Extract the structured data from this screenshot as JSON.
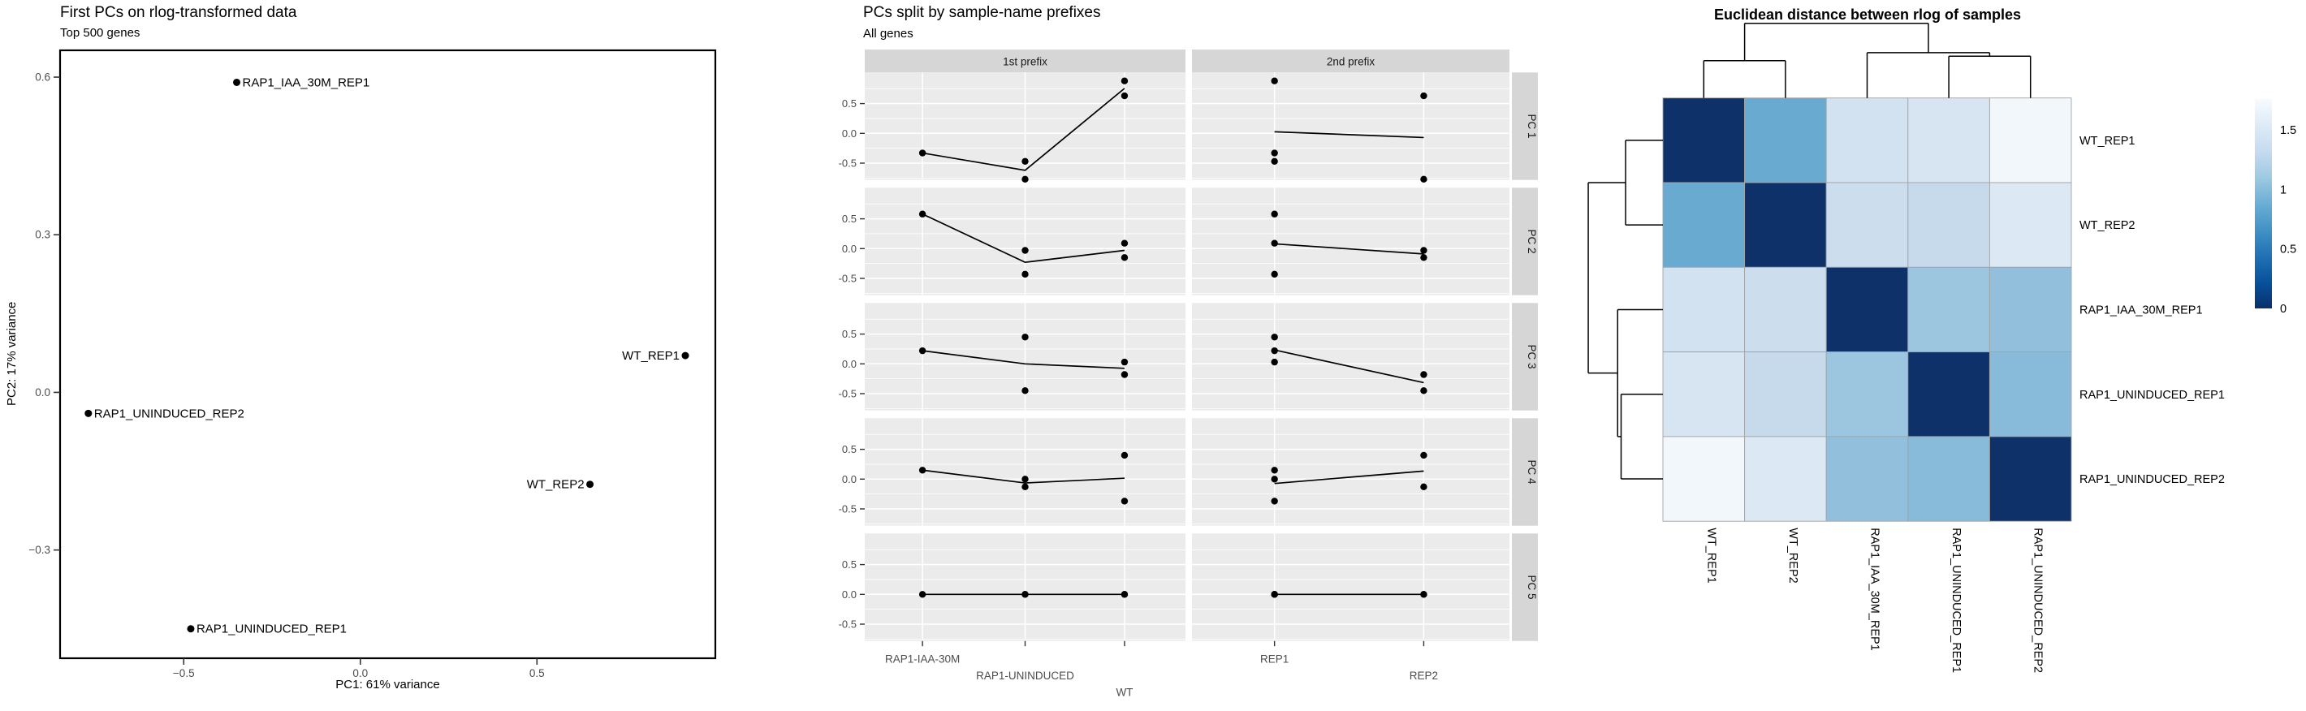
{
  "page": {
    "background": "#ffffff"
  },
  "chart_data": [
    {
      "type": "scatter",
      "title": "First PCs on rlog-transformed data",
      "subtitle": "Top 500 genes",
      "xlabel": "PC1: 61% variance",
      "ylabel": "PC2: 17% variance",
      "xtick_labels": [
        "−0.5",
        "0.0",
        "0.5"
      ],
      "xtick_values": [
        -0.5,
        0.0,
        0.5
      ],
      "ytick_labels": [
        "0.6",
        "0.3",
        "0.0",
        "−0.3"
      ],
      "ytick_values": [
        0.6,
        0.3,
        0.0,
        -0.3
      ],
      "xlim": [
        -0.85,
        1.005
      ],
      "ylim": [
        -0.506,
        0.651
      ],
      "grid": false,
      "legend_position": "none",
      "point_color": "#000000",
      "points": [
        {
          "label": "RAP1_IAA_30M_REP1",
          "x": -0.35,
          "y": 0.59,
          "label_side": "right"
        },
        {
          "label": "WT_REP1",
          "x": 0.92,
          "y": 0.07,
          "label_side": "left"
        },
        {
          "label": "RAP1_UNINDUCED_REP2",
          "x": -0.77,
          "y": -0.04,
          "label_side": "right"
        },
        {
          "label": "WT_REP2",
          "x": 0.65,
          "y": -0.175,
          "label_side": "left"
        },
        {
          "label": "RAP1_UNINDUCED_REP1",
          "x": -0.48,
          "y": -0.45,
          "label_side": "right"
        }
      ]
    },
    {
      "type": "line",
      "title": "PCs split by sample-name prefixes",
      "subtitle": "All genes",
      "col_facets": [
        "1st prefix",
        "2nd prefix"
      ],
      "row_facets": [
        "PC 1",
        "PC 2",
        "PC 3",
        "PC 4",
        "PC 5"
      ],
      "x_categories_col1": [
        "RAP1-IAA-30M",
        "RAP1-UNINDUCED",
        "WT"
      ],
      "x_categories_col2": [
        "REP1",
        "REP2"
      ],
      "ytick_labels": [
        "0.5",
        "0.0",
        "-0.5"
      ],
      "ytick_values": [
        0.5,
        0.0,
        -0.5
      ],
      "ylim": [
        -0.85,
        0.88
      ],
      "strip_color": "#d6d6d6",
      "panel_color": "#ebebeb",
      "grid_color": "#ffffff",
      "samples": [
        "WT_REP1",
        "WT_REP2",
        "RAP1_IAA_30M_REP1",
        "RAP1_UNINDUCED_REP1",
        "RAP1_UNINDUCED_REP2"
      ],
      "sample_prefix1": [
        "WT",
        "WT",
        "RAP1-IAA-30M",
        "RAP1-UNINDUCED",
        "RAP1-UNINDUCED"
      ],
      "sample_prefix2": [
        "REP1",
        "REP2",
        "REP1",
        "REP1",
        "REP2"
      ],
      "values": {
        "PC 1": [
          0.88,
          0.63,
          -0.33,
          -0.47,
          -0.77
        ],
        "PC 2": [
          0.09,
          -0.15,
          0.58,
          -0.43,
          -0.03
        ],
        "PC 3": [
          0.03,
          -0.18,
          0.22,
          0.45,
          -0.45
        ],
        "PC 4": [
          -0.37,
          0.4,
          0.15,
          0.0,
          -0.13
        ],
        "PC 5": [
          0.0,
          0.0,
          0.0,
          0.0,
          0.0
        ]
      }
    },
    {
      "type": "heatmap",
      "title": "Euclidean distance between rlog of samples",
      "samples": [
        "WT_REP1",
        "WT_REP2",
        "RAP1_IAA_30M_REP1",
        "RAP1_UNINDUCED_REP1",
        "RAP1_UNINDUCED_REP2"
      ],
      "distance_matrix": [
        [
          0.0,
          0.75,
          1.38,
          1.42,
          1.65
        ],
        [
          0.75,
          0.0,
          1.35,
          1.33,
          1.5
        ],
        [
          1.38,
          1.35,
          0.0,
          0.95,
          1.0
        ],
        [
          1.42,
          1.33,
          0.95,
          0.0,
          0.85
        ],
        [
          1.65,
          1.5,
          1.0,
          0.85,
          0.0
        ]
      ],
      "cell_colors": [
        [
          "#0d3168",
          "#69aad1",
          "#d3e2f0",
          "#d7e4f1",
          "#f2f7fc"
        ],
        [
          "#69aad1",
          "#0d3168",
          "#ccdeee",
          "#c7daec",
          "#dce8f4"
        ],
        [
          "#d3e2f0",
          "#ccdeee",
          "#0d3168",
          "#9cc6df",
          "#92c0dc"
        ],
        [
          "#d7e4f1",
          "#c7daec",
          "#9cc6df",
          "#0d3168",
          "#88bbd9"
        ],
        [
          "#f2f7fc",
          "#dce8f4",
          "#92c0dc",
          "#88bbd9",
          "#0d3168"
        ]
      ],
      "legend_tick_labels": [
        "1.5",
        "1",
        "0.5",
        "0"
      ],
      "legend_tick_values": [
        1.5,
        1.0,
        0.5,
        0.0
      ],
      "legend_range": [
        0,
        1.76
      ],
      "colormap_dark_to_light": [
        "#08306b",
        "#08519c",
        "#2171b5",
        "#4292c6",
        "#6baed6",
        "#9ecae1",
        "#c6dbef",
        "#deebf7",
        "#f7fbff"
      ],
      "cluster_tree": {
        "h": 1.5,
        "children": [
          {
            "h": 0.75,
            "children": [
              {
                "leaf": 0
              },
              {
                "leaf": 1
              }
            ]
          },
          {
            "h": 0.91,
            "children": [
              {
                "leaf": 2
              },
              {
                "h": 0.84,
                "children": [
                  {
                    "leaf": 3
                  },
                  {
                    "leaf": 4
                  }
                ]
              }
            ]
          }
        ]
      }
    }
  ]
}
